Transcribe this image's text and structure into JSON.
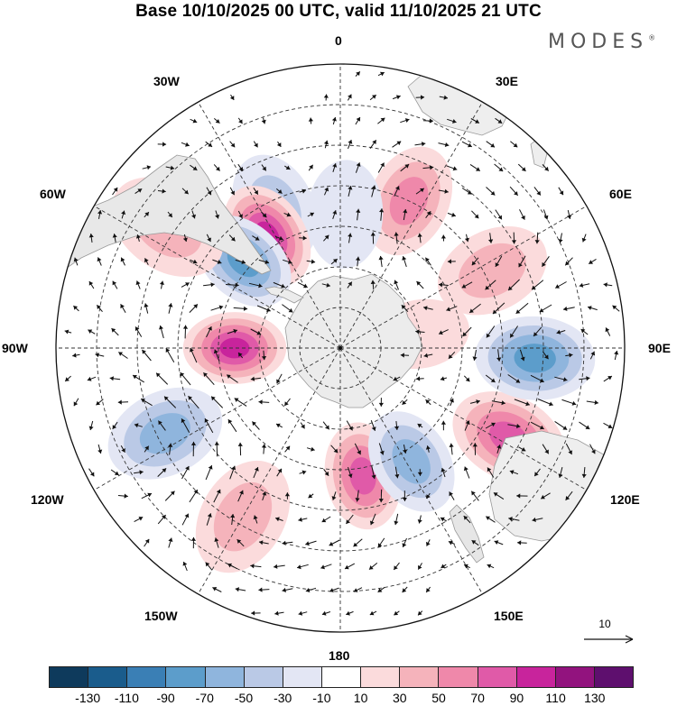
{
  "title": "Base 10/10/2025 00 UTC, valid 11/10/2025 21 UTC",
  "brand": "MODES",
  "brand_mark": "®",
  "longitude_labels": {
    "n0": "0",
    "e30": "30E",
    "e60": "60E",
    "e90": "90E",
    "e120": "120E",
    "e150": "150E",
    "s180": "180",
    "w150": "150W",
    "w120": "120W",
    "w90": "90W",
    "w60": "60W",
    "w30": "30W"
  },
  "reference_vector": {
    "label": "10"
  },
  "colorbar": {
    "colors": [
      "#0e3a5c",
      "#1a5c8c",
      "#3a7fb5",
      "#5c9dcb",
      "#8fb5dd",
      "#bac9e6",
      "#e3e6f4",
      "#ffffff",
      "#fbdbdc",
      "#f5b3bb",
      "#ef88aa",
      "#e05aa8",
      "#c8249c",
      "#92137e",
      "#5e0f6e"
    ],
    "ticks": [
      "-130",
      "-110",
      "-90",
      "-70",
      "-50",
      "-30",
      "-10",
      "10",
      "30",
      "50",
      "70",
      "90",
      "110",
      "130"
    ]
  },
  "anomaly_centers": [
    {
      "lon": 25,
      "lat": -50,
      "value": 60
    },
    {
      "lon": -25,
      "lat": -52,
      "value": -40
    },
    {
      "lon": -33,
      "lat": -57,
      "value": 110
    },
    {
      "lon": -48,
      "lat": -58,
      "value": -95
    },
    {
      "lon": -55,
      "lat": -38,
      "value": 45
    },
    {
      "lon": -90,
      "lat": -64,
      "value": 115
    },
    {
      "lon": -116,
      "lat": -42,
      "value": -60
    },
    {
      "lon": -150,
      "lat": -42,
      "value": 55
    },
    {
      "lon": 170,
      "lat": -58,
      "value": 90
    },
    {
      "lon": 148,
      "lat": -57,
      "value": -75
    },
    {
      "lon": 118,
      "lat": -43,
      "value": 95
    },
    {
      "lon": 93,
      "lat": -42,
      "value": -80
    },
    {
      "lon": 63,
      "lat": -48,
      "value": 55
    },
    {
      "lon": 2,
      "lat": -57,
      "value": -30
    },
    {
      "lon": 80,
      "lat": -70,
      "value": 25
    }
  ]
}
